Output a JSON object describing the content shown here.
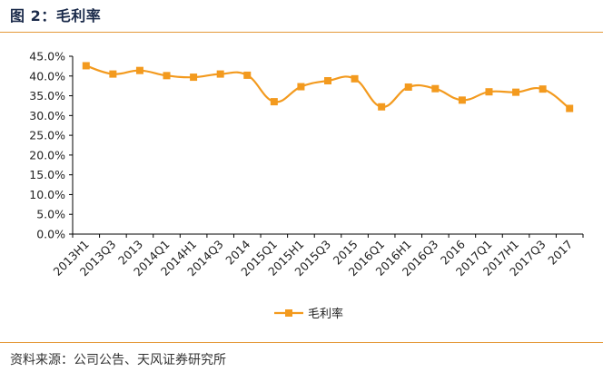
{
  "figure": {
    "title": "图 2：毛利率",
    "source": "资料来源：公司公告、天风证券研究所"
  },
  "chart_data": {
    "type": "line",
    "title": "",
    "xlabel": "",
    "ylabel": "",
    "categories": [
      "2013H1",
      "2013Q3",
      "2013",
      "2014Q1",
      "2014H1",
      "2014Q3",
      "2014",
      "2015Q1",
      "2015H1",
      "2015Q3",
      "2015",
      "2016Q1",
      "2016H1",
      "2016Q3",
      "2016",
      "2017Q1",
      "2017H1",
      "2017Q3",
      "2017"
    ],
    "series": [
      {
        "name": "毛利率",
        "color": "#f39a1e",
        "values": [
          42.6,
          40.5,
          41.4,
          40.1,
          39.7,
          40.5,
          40.2,
          33.5,
          37.3,
          38.8,
          39.3,
          32.2,
          37.2,
          36.8,
          33.9,
          36.0,
          35.9,
          36.7,
          31.8
        ]
      }
    ],
    "ylim": [
      0,
      45
    ],
    "y_ticks": [
      "0.0%",
      "5.0%",
      "10.0%",
      "15.0%",
      "20.0%",
      "25.0%",
      "30.0%",
      "35.0%",
      "40.0%",
      "45.0%"
    ],
    "y_tick_values": [
      0,
      5,
      10,
      15,
      20,
      25,
      30,
      35,
      40,
      45
    ],
    "grid": false,
    "legend": "bottom"
  }
}
